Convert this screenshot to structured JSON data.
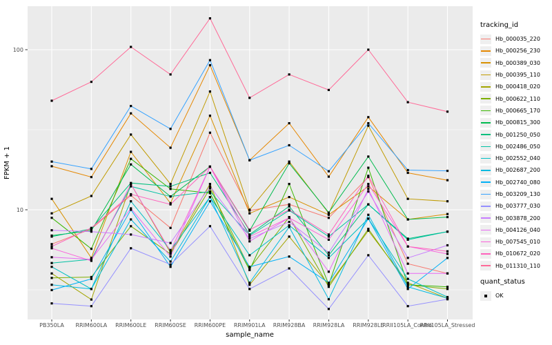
{
  "chart_data": {
    "type": "line",
    "title": "",
    "xlabel": "sample_name",
    "ylabel": "FPKM + 1",
    "y_scale": "log10",
    "ylim": [
      2.06,
      187
    ],
    "y_major_ticks": [
      10,
      100
    ],
    "y_minor_gridlines": [
      3.162,
      31.62
    ],
    "grid": "on",
    "legend_position": "right",
    "panel_bg": "#EBEBEB",
    "grid_color": "#FFFFFF",
    "tick_color": "#333333",
    "tick_label_color": "#4D4D4D",
    "point_color": "#000000",
    "point_shape": "square",
    "categories": [
      "PB350LA",
      "RRIM600LA",
      "RRIM600LE",
      "RRIM600SE",
      "RRIM600PE",
      "RRIM901LA",
      "RRIM928BA",
      "RRIM928LA",
      "RRIM928LE",
      "RRII105LA_Control",
      "RRII105LA_Stressed"
    ],
    "series": [
      {
        "name": "Hb_000035_220",
        "color": "#F8766D",
        "values": [
          6.1,
          7.6,
          12.3,
          7.7,
          30.3,
          9.9,
          10.8,
          8.9,
          16.0,
          4.6,
          4.0
        ]
      },
      {
        "name": "Hb_000256_230",
        "color": "#E58700",
        "values": [
          18.7,
          16.0,
          40.0,
          24.4,
          80.0,
          20.4,
          34.7,
          16.1,
          37.9,
          17.0,
          15.3
        ]
      },
      {
        "name": "Hb_000389_030",
        "color": "#D89000",
        "values": [
          11.7,
          5.0,
          23.0,
          11.0,
          38.7,
          9.5,
          12.0,
          9.3,
          14.0,
          8.7,
          9.4
        ]
      },
      {
        "name": "Hb_000395_110",
        "color": "#C09B00",
        "values": [
          9.5,
          12.2,
          29.5,
          14.5,
          54.8,
          10.0,
          20.0,
          9.5,
          33.5,
          11.7,
          11.3
        ]
      },
      {
        "name": "Hb_000418_020",
        "color": "#A3A500",
        "values": [
          4.0,
          2.75,
          14.5,
          5.4,
          14.5,
          3.4,
          6.8,
          3.4,
          7.4,
          3.5,
          2.8
        ]
      },
      {
        "name": "Hb_000622_110",
        "color": "#7CAE00",
        "values": [
          3.75,
          3.8,
          7.9,
          5.3,
          13.6,
          4.3,
          9.0,
          3.3,
          7.6,
          3.4,
          3.2
        ]
      },
      {
        "name": "Hb_000665_170",
        "color": "#39B600",
        "values": [
          8.9,
          5.7,
          20.8,
          13.5,
          12.7,
          4.2,
          14.5,
          3.4,
          18.3,
          3.4,
          3.3
        ]
      },
      {
        "name": "Hb_000815_300",
        "color": "#00BB4E",
        "values": [
          6.9,
          7.4,
          19.2,
          12.1,
          18.6,
          7.4,
          19.5,
          9.6,
          21.5,
          8.7,
          9.0
        ]
      },
      {
        "name": "Hb_001250_050",
        "color": "#00BF7D",
        "values": [
          6.8,
          7.6,
          14.7,
          14.0,
          17.0,
          7.0,
          10.5,
          5.2,
          10.8,
          6.6,
          7.3
        ]
      },
      {
        "name": "Hb_002486_050",
        "color": "#00C1A3",
        "values": [
          4.65,
          4.9,
          14.0,
          12.1,
          13.0,
          6.9,
          9.9,
          6.8,
          10.8,
          6.5,
          7.3
        ]
      },
      {
        "name": "Hb_002552_040",
        "color": "#00BFC4",
        "values": [
          4.4,
          3.2,
          11.3,
          5.6,
          12.0,
          5.2,
          8.0,
          5.0,
          8.8,
          3.7,
          2.85
        ]
      },
      {
        "name": "Hb_002687_200",
        "color": "#00BAE0",
        "values": [
          3.4,
          3.2,
          8.7,
          4.75,
          12.0,
          3.5,
          7.8,
          2.76,
          9.3,
          3.3,
          2.8
        ]
      },
      {
        "name": "Hb_002740_080",
        "color": "#00B0F6",
        "values": [
          3.15,
          3.7,
          10.0,
          4.4,
          11.3,
          4.4,
          5.1,
          3.5,
          8.8,
          3.2,
          5.0
        ]
      },
      {
        "name": "Hb_003209_130",
        "color": "#35A2FF",
        "values": [
          20.0,
          18.0,
          44.5,
          32.0,
          86.0,
          20.4,
          25.3,
          17.4,
          34.7,
          17.7,
          17.5
        ]
      },
      {
        "name": "Hb_003777_030",
        "color": "#9590FF",
        "values": [
          2.6,
          2.5,
          5.75,
          4.55,
          7.9,
          3.2,
          4.3,
          2.4,
          5.2,
          2.5,
          2.76
        ]
      },
      {
        "name": "Hb_003878_200",
        "color": "#C77CFF",
        "values": [
          7.45,
          7.3,
          7.0,
          6.2,
          14.0,
          6.6,
          8.4,
          5.4,
          13.0,
          5.0,
          6.0
        ]
      },
      {
        "name": "Hb_004126_040",
        "color": "#E76BF3",
        "values": [
          5.05,
          4.9,
          10.2,
          5.1,
          18.6,
          6.35,
          8.9,
          4.1,
          13.5,
          4.0,
          4.0
        ]
      },
      {
        "name": "Hb_007545_010",
        "color": "#FA62DB",
        "values": [
          5.75,
          4.8,
          14.5,
          5.5,
          18.6,
          6.8,
          8.9,
          6.5,
          14.5,
          5.9,
          5.3
        ]
      },
      {
        "name": "Hb_010672_020",
        "color": "#FF62BC",
        "values": [
          5.9,
          7.7,
          12.5,
          10.8,
          18.6,
          7.5,
          10.0,
          7.0,
          16.3,
          5.9,
          5.5
        ]
      },
      {
        "name": "Hb_011310_110",
        "color": "#FF6A98",
        "values": [
          48,
          63,
          104,
          70,
          157,
          50,
          70,
          56,
          100,
          47,
          41
        ]
      }
    ],
    "legend": {
      "color_title": "tracking_id",
      "shape_title": "quant_status",
      "shape_label": "OK"
    }
  }
}
